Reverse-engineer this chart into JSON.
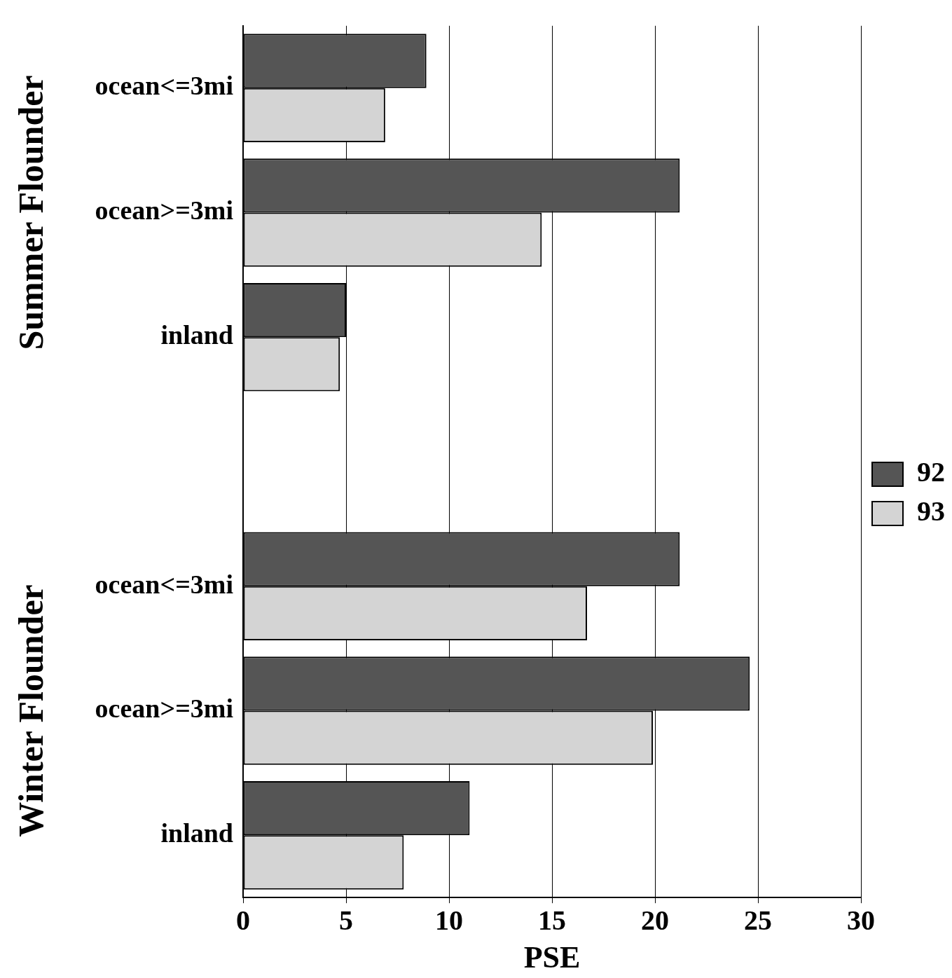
{
  "chart_data": {
    "type": "bar",
    "orientation": "horizontal",
    "categories": [
      "ocean<=3mi",
      "ocean>=3mi",
      "inland",
      null,
      "ocean<=3mi",
      "ocean>=3mi",
      "inland"
    ],
    "series": [
      {
        "name": "92",
        "color": "#555555",
        "values": [
          8.9,
          21.2,
          5.0,
          null,
          21.2,
          24.6,
          11.0
        ]
      },
      {
        "name": "93",
        "color": "#d4d4d4",
        "values": [
          6.9,
          14.5,
          4.7,
          null,
          16.7,
          19.9,
          7.8
        ]
      }
    ],
    "xlabel": "PSE",
    "xlim": [
      0,
      30
    ],
    "xticks": [
      0,
      5,
      10,
      15,
      20,
      25,
      30
    ],
    "grid": "x",
    "legend": "right",
    "annotations": [
      "Summer Flounder",
      "Winter Flounder"
    ]
  }
}
